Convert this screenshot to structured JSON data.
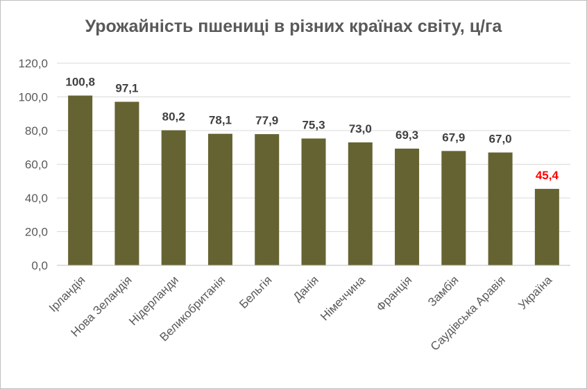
{
  "chart_data": {
    "type": "bar",
    "title": "Урожайність пшениці в різних країнах світу, ц/га",
    "categories": [
      "Ірландія",
      "Нова Зеландія",
      "Нідерланди",
      "Великобританія",
      "Бельгія",
      "Данія",
      "Німеччина",
      "Франція",
      "Замбія",
      "Саудівська Аравія",
      "Україна"
    ],
    "values": [
      100.8,
      97.1,
      80.2,
      78.1,
      77.9,
      75.3,
      73.0,
      69.3,
      67.9,
      67.0,
      45.4
    ],
    "data_labels": [
      "100,8",
      "97,1",
      "80,2",
      "78,1",
      "77,9",
      "75,3",
      "73,0",
      "69,3",
      "67,9",
      "67,0",
      "45,4"
    ],
    "ylim": [
      0,
      120
    ],
    "yticks": [
      0,
      20,
      40,
      60,
      80,
      100,
      120
    ],
    "ytick_labels": [
      "0,0",
      "20,0",
      "40,0",
      "60,0",
      "80,0",
      "100,0",
      "120,0"
    ],
    "grid": true,
    "legend": "none",
    "bar_color": "#656331",
    "highlight_category": "Україна",
    "highlight_label_color": "#ff0000",
    "label_color": "#404040",
    "grid_color": "#d9d9d9"
  }
}
